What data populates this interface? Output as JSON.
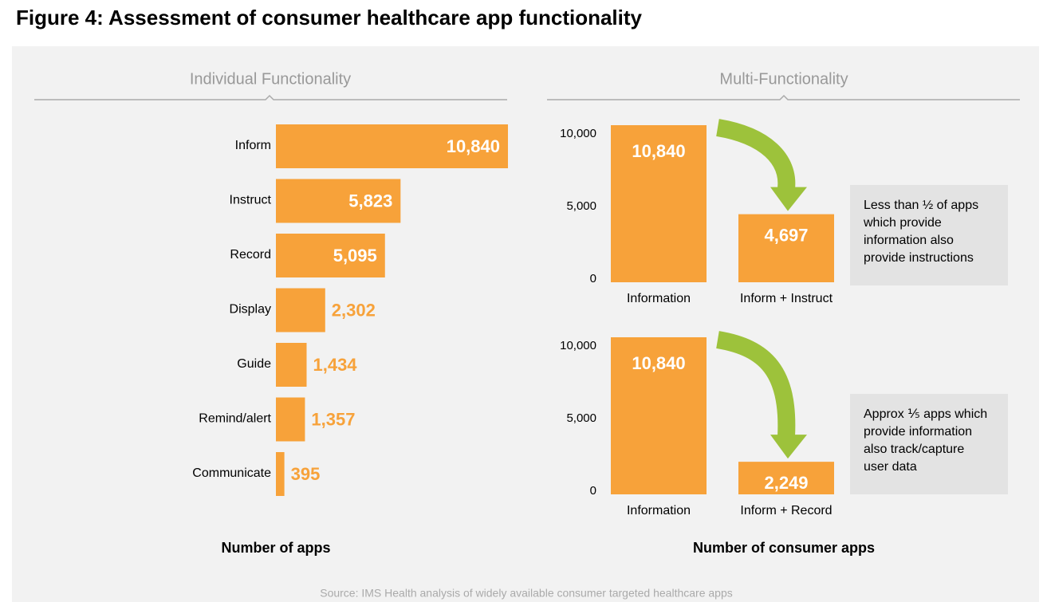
{
  "title": "Figure 4: Assessment of consumer healthcare app functionality",
  "source": "Source: IMS Health analysis of widely available consumer targeted healthcare apps",
  "chart_data": [
    {
      "type": "bar",
      "orientation": "horizontal",
      "section": "Individual Functionality",
      "x_label": "Number of apps",
      "color": "#f7a23a",
      "categories": [
        "Inform",
        "Instruct",
        "Record",
        "Display",
        "Guide",
        "Remind/alert",
        "Communicate"
      ],
      "values": [
        10840,
        5823,
        5095,
        2302,
        1434,
        1357,
        395
      ],
      "value_labels": [
        "10,840",
        "5,823",
        "5,095",
        "2,302",
        "1,434",
        "1,357",
        "395"
      ]
    },
    {
      "type": "bar",
      "section": "Multi-Functionality",
      "color": "#f7a23a",
      "categories": [
        "Information",
        "Inform + Instruct"
      ],
      "values": [
        10840,
        4697
      ],
      "value_labels": [
        "10,840",
        "4,697"
      ],
      "ylim": [
        0,
        11500
      ],
      "yticks": [
        0,
        {
          "value": 5000,
          "label": "5,000"
        },
        {
          "value": 10000,
          "label": "10,000"
        }
      ],
      "annotation": [
        "Less than ½ of apps",
        "which provide",
        "information also",
        "provide instructions"
      ]
    },
    {
      "type": "bar",
      "x_label": "Number of consumer apps",
      "color": "#f7a23a",
      "categories": [
        "Information",
        "Inform + Record"
      ],
      "values": [
        10840,
        2249
      ],
      "value_labels": [
        "10,840",
        "2,249"
      ],
      "ylim": [
        0,
        11500
      ],
      "yticks": [
        0,
        {
          "value": 5000,
          "label": "5,000"
        },
        {
          "value": 10000,
          "label": "10,000"
        }
      ],
      "annotation": [
        "Approx ⅕ apps which",
        "provide information",
        "also track/capture",
        "user data"
      ]
    }
  ]
}
